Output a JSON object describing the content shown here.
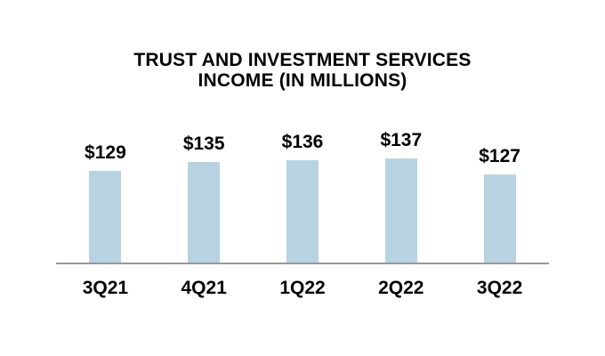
{
  "page": {
    "background": "#ffffff"
  },
  "chart_data": {
    "type": "bar",
    "title_lines": [
      "TRUST AND INVESTMENT SERVICES",
      "INCOME (IN MILLIONS)"
    ],
    "title": "TRUST AND INVESTMENT SERVICES INCOME (IN MILLIONS)",
    "categories": [
      "3Q21",
      "4Q21",
      "1Q22",
      "2Q22",
      "3Q22"
    ],
    "values": [
      129,
      135,
      136,
      137,
      127
    ],
    "value_labels": [
      "$129",
      "$135",
      "$136",
      "$137",
      "$127"
    ],
    "xlabel": "",
    "ylabel": "",
    "ylim": [
      72,
      200
    ],
    "grid": false,
    "legend": false,
    "colors": {
      "bar": "#B7D3E1",
      "axis_line": "#999999",
      "text": "#000000"
    }
  }
}
